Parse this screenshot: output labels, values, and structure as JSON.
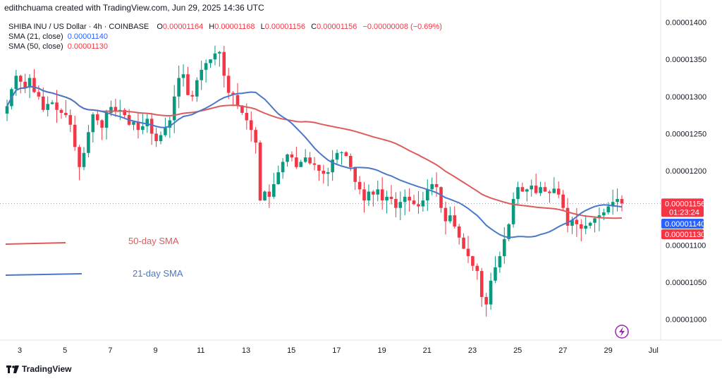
{
  "header": {
    "credit": "edithchuama created with TradingView.com, Jun 29, 2025 14:36 UTC"
  },
  "legend": {
    "symbol": "SHIBA INU / US Dollar · 4h · COINBASE",
    "o_label": "O",
    "o_value": "0.00001164",
    "h_label": "H",
    "h_value": "0.00001168",
    "l_label": "L",
    "l_value": "0.00001156",
    "c_label": "C",
    "c_value": "0.00001156",
    "change": "−0.00000008 (−0.69%)",
    "sma21_label": "SMA (21, close)",
    "sma21_value": "0.00001140",
    "sma50_label": "SMA (50, close)",
    "sma50_value": "0.00001130"
  },
  "annotations": {
    "sma50": "50-day SMA",
    "sma21": "21-day SMA"
  },
  "brand": {
    "name": "TradingView"
  },
  "colors": {
    "up": "#089981",
    "down": "#f23645",
    "sma21": "#4a78c8",
    "sma50": "#dd5b5b",
    "price_tag": "#f23645",
    "sma21_tag": "#2962ff",
    "sma50_tag": "#f23645"
  },
  "chart_data": {
    "type": "candlestick",
    "xlabel": "",
    "ylabel": "",
    "ylim": [
      9.72e-06,
      1.43e-05
    ],
    "y_ticks": [
      "0.00001400",
      "0.00001350",
      "0.00001300",
      "0.00001250",
      "0.00001200",
      "0.00001100",
      "0.00001050",
      "0.00001000"
    ],
    "x_ticks": [
      {
        "label": "3",
        "day": 3
      },
      {
        "label": "5",
        "day": 5
      },
      {
        "label": "7",
        "day": 7
      },
      {
        "label": "9",
        "day": 9
      },
      {
        "label": "11",
        "day": 11
      },
      {
        "label": "13",
        "day": 13
      },
      {
        "label": "15",
        "day": 15
      },
      {
        "label": "17",
        "day": 17
      },
      {
        "label": "19",
        "day": 19
      },
      {
        "label": "21",
        "day": 21
      },
      {
        "label": "23",
        "day": 23
      },
      {
        "label": "25",
        "day": 25
      },
      {
        "label": "27",
        "day": 27
      },
      {
        "label": "29",
        "day": 29
      },
      {
        "label": "Jul",
        "day": 31
      }
    ],
    "price_tags": [
      {
        "value": 1.156e-05,
        "text": "0.00001156",
        "time": "01:23:24",
        "kind": "price"
      },
      {
        "value": 1.14e-05,
        "text": "0.00001140",
        "kind": "sma21"
      },
      {
        "value": 1.13e-05,
        "text": "0.00001130",
        "kind": "sma50"
      }
    ],
    "last_price": 1.156e-05,
    "close_series_e8": [
      1287,
      1310,
      1328,
      1320,
      1312,
      1325,
      1306,
      1300,
      1282,
      1290,
      1292,
      1282,
      1278,
      1275,
      1262,
      1232,
      1205,
      1224,
      1252,
      1276,
      1268,
      1258,
      1278,
      1286,
      1280,
      1282,
      1275,
      1262,
      1266,
      1255,
      1260,
      1270,
      1250,
      1240,
      1248,
      1258,
      1268,
      1300,
      1325,
      1330,
      1302,
      1300,
      1322,
      1336,
      1345,
      1350,
      1358,
      1360,
      1328,
      1305,
      1302,
      1288,
      1278,
      1268,
      1255,
      1238,
      1160,
      1172,
      1165,
      1182,
      1198,
      1212,
      1222,
      1218,
      1205,
      1212,
      1218,
      1210,
      1208,
      1200,
      1196,
      1198,
      1215,
      1224,
      1225,
      1220,
      1205,
      1185,
      1175,
      1160,
      1172,
      1168,
      1175,
      1160,
      1165,
      1162,
      1150,
      1158,
      1165,
      1160,
      1155,
      1152,
      1160,
      1175,
      1182,
      1178,
      1150,
      1132,
      1140,
      1125,
      1110,
      1095,
      1085,
      1072,
      1065,
      1030,
      1020,
      1052,
      1070,
      1085,
      1108,
      1128,
      1162,
      1178,
      1172,
      1175,
      1180,
      1170,
      1178,
      1172,
      1170,
      1176,
      1168,
      1150,
      1126,
      1134,
      1128,
      1122,
      1126,
      1130,
      1136,
      1140,
      1144,
      1152,
      1158,
      1162,
      1156
    ]
  }
}
